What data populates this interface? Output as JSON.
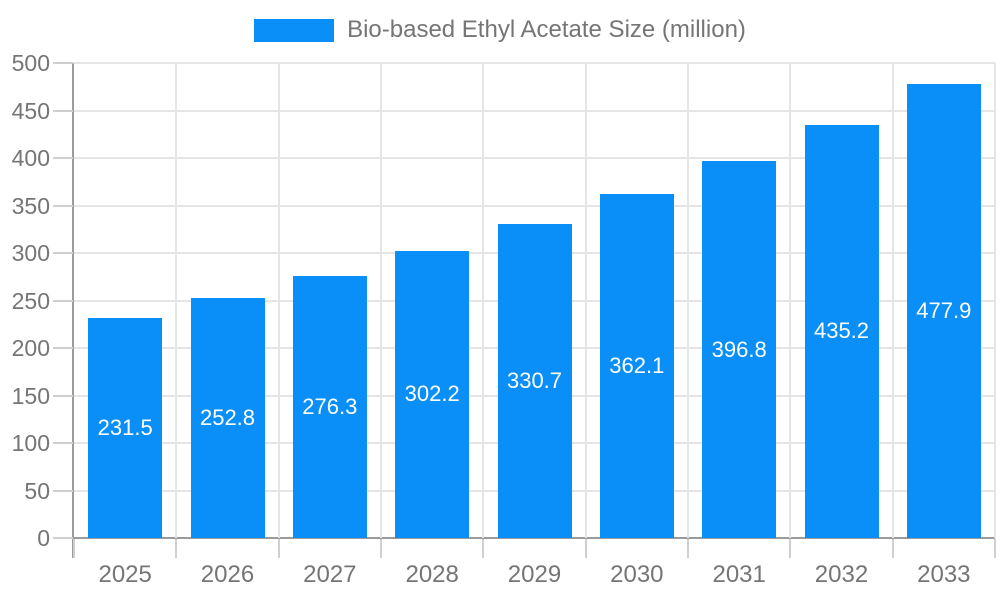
{
  "chart_data": {
    "type": "bar",
    "title": "Bio-based Ethyl Acetate Size (million)",
    "categories": [
      "2025",
      "2026",
      "2027",
      "2028",
      "2029",
      "2030",
      "2031",
      "2032",
      "2033"
    ],
    "values": [
      231.5,
      252.8,
      276.3,
      302.2,
      330.7,
      362.1,
      396.8,
      435.2,
      477.9
    ],
    "series": [
      {
        "name": "Bio-based Ethyl Acetate Size (million)",
        "values": [
          231.5,
          252.8,
          276.3,
          302.2,
          330.7,
          362.1,
          396.8,
          435.2,
          477.9
        ]
      }
    ],
    "xlabel": "",
    "ylabel": "",
    "ylim": [
      0,
      500
    ],
    "y_tick_labels": [
      "0",
      "50",
      "100",
      "150",
      "200",
      "250",
      "300",
      "350",
      "400",
      "450",
      "500"
    ],
    "grid": true,
    "legend_position": "top-center",
    "value_labels_shown": true
  },
  "colors": {
    "bar_fill": "#0a8ff8",
    "axis_text": "#757575",
    "legend_text": "#757575",
    "grid_line": "#e5e5e5",
    "tick_line": "#cfcfcf",
    "axis_line": "#9b9b9b",
    "value_label_text": "#ffffff",
    "background": "#ffffff"
  }
}
